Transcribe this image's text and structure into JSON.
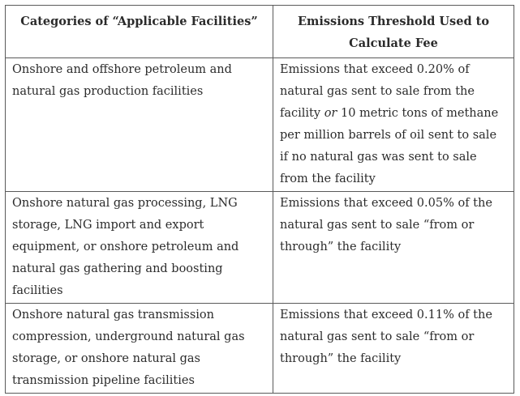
{
  "table": {
    "headers": [
      "Categories of “Applicable Facilities”",
      "Emissions Threshold Used to Calculate Fee"
    ],
    "rows": [
      {
        "category": "Onshore and offshore petroleum and natural gas production facilities",
        "threshold_before": "Emissions that exceed 0.20% of natural gas sent to sale from the facility ",
        "threshold_em": "or",
        "threshold_after": " 10 metric tons of methane per million barrels of oil sent to sale if no natural gas was sent to sale from the facility"
      },
      {
        "category": "Onshore natural gas processing, LNG storage, LNG import and export equipment, or onshore petroleum and natural gas gathering and boosting facilities",
        "threshold": "Emissions that exceed 0.05% of the natural gas sent to sale “from or through” the facility"
      },
      {
        "category": "Onshore natural gas transmission compression, underground natural gas storage, or onshore natural gas transmission pipeline facilities",
        "threshold": "Emissions that exceed 0.11% of the natural gas sent to sale “from or through” the facility"
      }
    ]
  }
}
